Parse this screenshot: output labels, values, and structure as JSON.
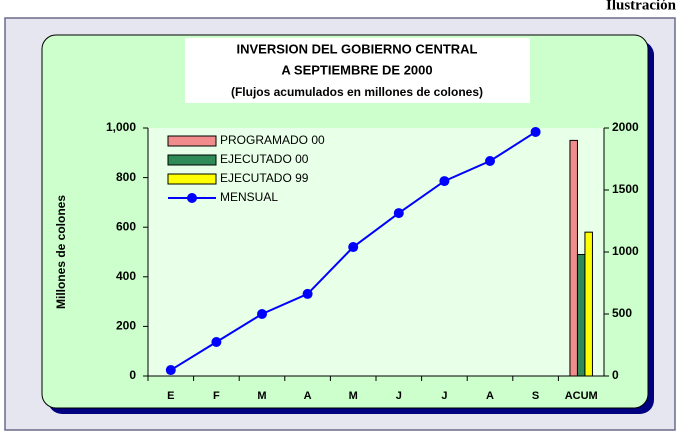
{
  "header": {
    "label": "Ilustración"
  },
  "chart_data": {
    "type": "bar-line",
    "title": "INVERSION DEL GOBIERNO CENTRAL",
    "subtitle": "A SEPTIEMBRE DE 2000",
    "note": "(Flujos acumulados en millones de colones)",
    "ylabel": "Millones de colones",
    "categories": [
      "E",
      "F",
      "M",
      "A",
      "M",
      "J",
      "J",
      "A",
      "S",
      "ACUM"
    ],
    "series": [
      {
        "name": "PROGRAMADO 00",
        "color": "#f08c8c",
        "type": "bar",
        "axis": "y2",
        "values": [
          null,
          null,
          null,
          null,
          null,
          null,
          null,
          null,
          null,
          1900
        ]
      },
      {
        "name": "EJECUTADO 00",
        "color": "#2e8b57",
        "type": "bar",
        "axis": "y2",
        "values": [
          null,
          null,
          null,
          null,
          null,
          null,
          null,
          null,
          null,
          980
        ]
      },
      {
        "name": "EJECUTADO 99",
        "color": "#ffff00",
        "type": "bar",
        "axis": "y2",
        "values": [
          null,
          null,
          null,
          null,
          null,
          null,
          null,
          null,
          null,
          1160
        ]
      },
      {
        "name": "MENSUAL",
        "color": "#0000ff",
        "type": "line",
        "axis": "y",
        "values": [
          24,
          137,
          250,
          331,
          520,
          657,
          786,
          867,
          984,
          null
        ]
      }
    ],
    "ylim": [
      0,
      1000
    ],
    "yticks": [
      0,
      200,
      400,
      600,
      800,
      {
        "value": 1000,
        "label": "1,000"
      }
    ],
    "y2lim": [
      0,
      2000
    ],
    "y2ticks": [
      0,
      500,
      1000,
      1500,
      2000
    ],
    "legend": "top-left"
  }
}
